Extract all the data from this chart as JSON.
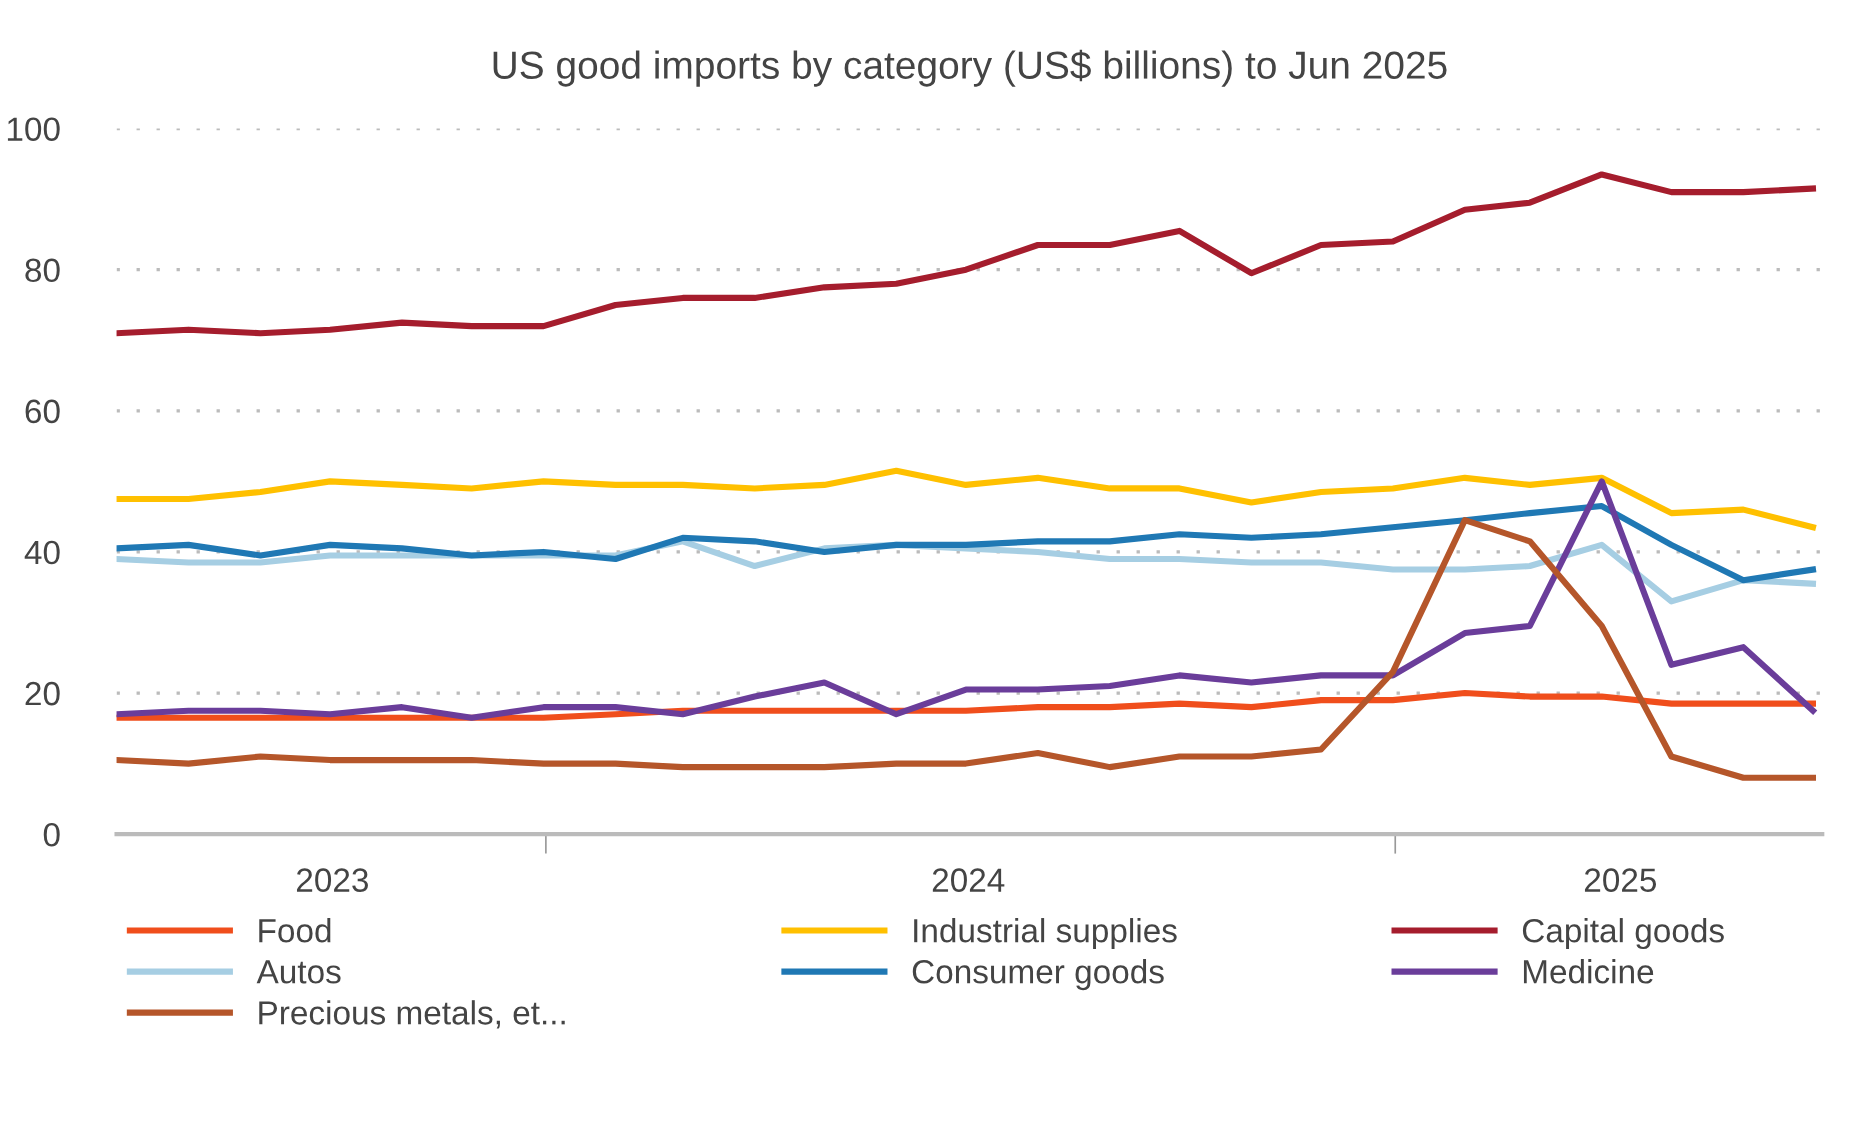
{
  "chart_data": {
    "type": "line",
    "title": "US good imports by category (US$ billions) to Jun 2025",
    "x": [
      "2023-06-30",
      "2023-07-31",
      "2023-08-31",
      "2023-09-30",
      "2023-10-31",
      "2023-11-30",
      "2023-12-31",
      "2024-01-31",
      "2024-02-29",
      "2024-03-31",
      "2024-04-30",
      "2024-05-31",
      "2024-06-30",
      "2024-07-31",
      "2024-08-31",
      "2024-09-30",
      "2024-10-31",
      "2024-11-30",
      "2024-12-31",
      "2025-01-31",
      "2025-02-28",
      "2025-03-31",
      "2025-04-30",
      "2025-05-31",
      "2025-06-30"
    ],
    "series": [
      {
        "name": "Food",
        "color": "#f04e1c",
        "values": [
          16.5,
          16.5,
          16.5,
          16.5,
          16.5,
          16.5,
          16.5,
          17,
          17.5,
          17.5,
          17.5,
          17.5,
          17.5,
          18,
          18,
          18.5,
          18,
          19,
          19,
          20,
          19.5,
          19.5,
          18.5,
          18.5,
          18.5
        ]
      },
      {
        "name": "Industrial supplies",
        "color": "#ffc000",
        "values": [
          47.5,
          47.5,
          48.5,
          50,
          49.5,
          49,
          50,
          49.5,
          49.5,
          49,
          49.5,
          51.5,
          49.5,
          50.5,
          49,
          49,
          47,
          48.5,
          49,
          50.5,
          49.5,
          50.5,
          45.5,
          46,
          43.5
        ]
      },
      {
        "name": "Capital goods",
        "color": "#a51d2d",
        "values": [
          71,
          71.5,
          71,
          71.5,
          72.5,
          72,
          72,
          75,
          76,
          76,
          77.5,
          78,
          80,
          83.5,
          83.5,
          85.5,
          79.5,
          83.5,
          84,
          88.5,
          89.5,
          93.5,
          91,
          91,
          91.5
        ]
      },
      {
        "name": "Autos",
        "color": "#a6cee3",
        "values": [
          39,
          38.5,
          38.5,
          39.5,
          39.5,
          39.5,
          39.5,
          39.5,
          41.5,
          38,
          40.5,
          41,
          40.5,
          40,
          39,
          39,
          38.5,
          38.5,
          37.5,
          37.5,
          38,
          41,
          33,
          36,
          35.5
        ]
      },
      {
        "name": "Consumer goods",
        "color": "#1f78b4",
        "values": [
          40.5,
          41,
          39.5,
          41,
          40.5,
          39.5,
          40,
          39,
          42,
          41.5,
          40,
          41,
          41,
          41.5,
          41.5,
          42.5,
          42,
          42.5,
          43.5,
          44.5,
          45.5,
          46.5,
          41,
          36,
          37.5
        ]
      },
      {
        "name": "Medicine",
        "color": "#6a3d9a",
        "values": [
          17,
          17.5,
          17.5,
          17,
          18,
          16.5,
          18,
          18,
          17,
          19.5,
          21.5,
          17,
          20.5,
          20.5,
          21,
          22.5,
          21.5,
          22.5,
          22.5,
          28.5,
          29.5,
          50,
          24,
          26.5,
          17.5
        ]
      },
      {
        "name": "Precious metals, et...",
        "color": "#b5562a",
        "values": [
          10.5,
          10,
          11,
          10.5,
          10.5,
          10.5,
          10,
          10,
          9.5,
          9.5,
          9.5,
          10,
          10,
          11.5,
          9.5,
          11,
          11,
          12,
          23,
          44.5,
          41.5,
          29.5,
          11,
          8,
          8
        ]
      }
    ],
    "xlim": [
      "2023-06-30",
      "2025-07-04"
    ],
    "xticks": [
      {
        "value": "2023-10-01",
        "label": "2023"
      },
      {
        "value": "2024-01-01",
        "label": null
      },
      {
        "value": "2024-07-01",
        "label": "2024"
      },
      {
        "value": "2025-01-01",
        "label": null
      },
      {
        "value": "2025-04-08",
        "label": "2025"
      }
    ],
    "ylim": [
      0,
      100
    ],
    "yticks": [
      0,
      20,
      40,
      60,
      80,
      100
    ],
    "grid": "y",
    "legend": "bottom",
    "marker": "none",
    "line_style": "solid"
  }
}
